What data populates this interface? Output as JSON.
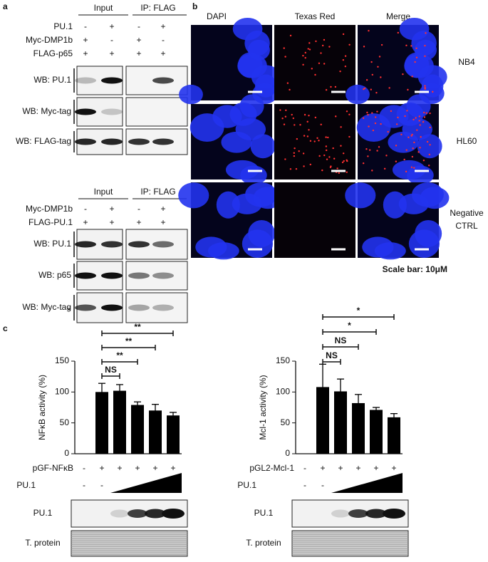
{
  "panel_a": {
    "label": "a",
    "top": {
      "headers": [
        "Input",
        "IP: FLAG"
      ],
      "rows": [
        {
          "label": "PU.1",
          "values": [
            "-",
            "+",
            "-",
            "+"
          ]
        },
        {
          "label": "Myc-DMP1b",
          "values": [
            "+",
            "-",
            "+",
            "-"
          ]
        },
        {
          "label": "FLAG-p65",
          "values": [
            "+",
            "+",
            "+",
            "+"
          ]
        }
      ],
      "blots": [
        "WB: PU.1",
        "WB: Myc-tag",
        "WB: FLAG-tag"
      ]
    },
    "bottom": {
      "headers": [
        "Input",
        "IP: FLAG"
      ],
      "rows": [
        {
          "label": "Myc-DMP1b",
          "values": [
            "-",
            "+",
            "-",
            "+"
          ]
        },
        {
          "label": "FLAG-PU.1",
          "values": [
            "+",
            "+",
            "+",
            "+"
          ]
        }
      ],
      "blots": [
        "WB: PU.1",
        "WB: p65",
        "WB: Myc-tag"
      ],
      "marker": "*"
    }
  },
  "panel_b": {
    "label": "b",
    "columns": [
      "DAPI",
      "Texas Red",
      "Merge"
    ],
    "rows": [
      [
        "NB4"
      ],
      [
        "HL60"
      ],
      [
        "Negative",
        "CTRL"
      ]
    ],
    "scale_note": "Scale bar: 10μM"
  },
  "panel_c": {
    "label": "c"
  },
  "chart_data": [
    {
      "type": "bar",
      "ylabel": "NFκB activity (%)",
      "x_label": "pGF-NFκB",
      "categories": [
        "-",
        "+",
        "+",
        "+",
        "+",
        "+"
      ],
      "values": [
        null,
        100,
        102,
        79,
        70,
        62
      ],
      "errors": [
        null,
        14,
        10,
        5,
        10,
        5
      ],
      "color": "#000000",
      "ylim": [
        0,
        150
      ],
      "yticks": [
        0,
        50,
        100,
        150
      ],
      "second_row": {
        "label": "PU.1",
        "values": [
          "-",
          "-"
        ]
      },
      "significance": [
        "**",
        "**",
        "**",
        "NS"
      ],
      "blots": [
        "PU.1",
        "T. protein"
      ]
    },
    {
      "type": "bar",
      "ylabel": "Mcl-1 activity (%)",
      "x_label": "pGL2-Mcl-1",
      "categories": [
        "-",
        "+",
        "+",
        "+",
        "+",
        "+"
      ],
      "values": [
        null,
        108,
        101,
        82,
        71,
        59
      ],
      "errors": [
        null,
        37,
        20,
        14,
        4,
        6
      ],
      "color": "#000000",
      "ylim": [
        0,
        150
      ],
      "yticks": [
        0,
        50,
        100,
        150
      ],
      "second_row": {
        "label": "PU.1",
        "values": [
          "-",
          "-"
        ]
      },
      "significance": [
        "*",
        "*",
        "NS",
        "NS"
      ],
      "blots": [
        "PU.1",
        "T. protein"
      ]
    }
  ]
}
